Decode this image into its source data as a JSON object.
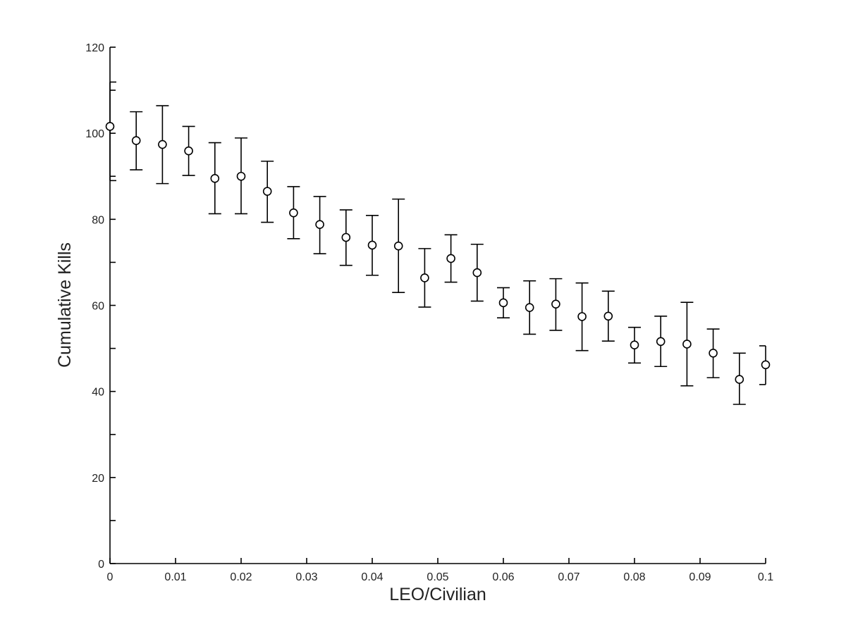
{
  "chart_data": {
    "type": "scatter",
    "title": "",
    "xlabel": "LEO/Civilian",
    "ylabel": "Cumulative Kills",
    "xlim": [
      0,
      0.1
    ],
    "ylim": [
      0,
      120
    ],
    "x_ticks": [
      0,
      0.01,
      0.02,
      0.03,
      0.04,
      0.05,
      0.06,
      0.07,
      0.08,
      0.09,
      0.1
    ],
    "x_tick_labels": [
      "0",
      "0.01",
      "0.02",
      "0.03",
      "0.04",
      "0.05",
      "0.06",
      "0.07",
      "0.08",
      "0.09",
      "0.1"
    ],
    "y_ticks": [
      0,
      20,
      40,
      60,
      80,
      100,
      120
    ],
    "y_tick_labels": [
      "0",
      "20",
      "40",
      "60",
      "80",
      "100",
      "120"
    ],
    "grid": false,
    "marker": "open-circle",
    "error_bars": true,
    "series": [
      {
        "x": [
          0,
          0.004,
          0.008,
          0.012,
          0.016,
          0.02,
          0.024,
          0.028,
          0.032,
          0.036,
          0.04,
          0.044,
          0.048,
          0.052,
          0.056,
          0.06,
          0.064,
          0.068,
          0.072,
          0.076,
          0.08,
          0.084,
          0.088,
          0.092,
          0.096,
          0.1
        ],
        "y": [
          101.6,
          98.3,
          97.4,
          95.9,
          89.5,
          90.0,
          86.5,
          81.5,
          78.8,
          75.8,
          74.0,
          73.8,
          66.4,
          70.9,
          67.6,
          60.6,
          59.5,
          60.3,
          57.4,
          57.5,
          50.8,
          51.6,
          51.0,
          48.9,
          42.8,
          46.2
        ],
        "y_lower": [
          89.0,
          91.5,
          88.3,
          90.2,
          81.3,
          81.3,
          79.3,
          75.5,
          72.0,
          69.3,
          67.0,
          63.0,
          59.6,
          65.4,
          61.0,
          57.1,
          53.3,
          54.2,
          49.5,
          51.7,
          46.6,
          45.8,
          41.3,
          43.2,
          37.0,
          41.6
        ],
        "y_upper": [
          111.9,
          105.0,
          106.4,
          101.6,
          97.8,
          98.9,
          93.5,
          87.6,
          85.3,
          82.2,
          80.9,
          84.7,
          73.2,
          76.4,
          74.2,
          64.1,
          65.7,
          66.2,
          65.2,
          63.3,
          54.9,
          57.5,
          60.7,
          54.5,
          48.9,
          50.6
        ]
      }
    ]
  }
}
